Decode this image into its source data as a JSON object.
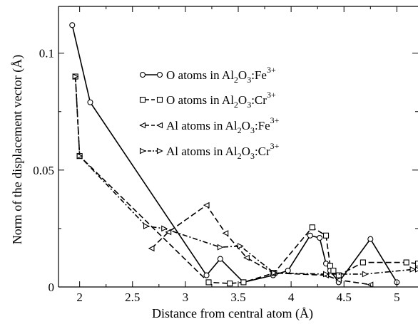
{
  "chart_data": {
    "type": "line",
    "xlabel": "Distance from central atom (Å)",
    "ylabel": "Norm of the displacement vector (Å)",
    "xlim": [
      1.8,
      5.2
    ],
    "ylim": [
      0,
      0.12
    ],
    "x_ticks": [
      2,
      2.5,
      3,
      3.5,
      4,
      4.5,
      5
    ],
    "x_tick_labels": [
      "2",
      "2.5",
      "3",
      "3.5",
      "4",
      "4.5",
      "5"
    ],
    "y_ticks": [
      0,
      0.05,
      0.1
    ],
    "y_tick_labels": [
      "0",
      "0.05",
      "0.1"
    ],
    "grid": false,
    "legend_position": "upper-center",
    "series": [
      {
        "name": "O atoms in Al2O3:Fe3+",
        "legend": {
          "base": "O atoms in Al",
          "sub1": "2",
          "mid": "O",
          "sub2": "3",
          "tail": ":Fe",
          "sup": "3+"
        },
        "marker": "circle",
        "dash": "solid",
        "color": "#000000",
        "x": [
          1.93,
          2.1,
          3.2,
          3.33,
          3.55,
          3.83,
          3.97,
          4.18,
          4.27,
          4.33,
          4.37,
          4.45,
          4.75,
          5.0
        ],
        "y": [
          0.112,
          0.079,
          0.005,
          0.012,
          0.002,
          0.005,
          0.007,
          0.022,
          0.021,
          0.01,
          0.007,
          0.002,
          0.0205,
          0.002
        ]
      },
      {
        "name": "O atoms in Al2O3:Cr3+",
        "legend": {
          "base": "O atoms in Al",
          "sub1": "2",
          "mid": "O",
          "sub2": "3",
          "tail": ":Cr",
          "sup": "3+"
        },
        "marker": "square",
        "dash": "dashed",
        "color": "#000000",
        "x": [
          1.96,
          2.0,
          3.22,
          3.42,
          3.55,
          3.84,
          4.2,
          4.33,
          4.37,
          4.4,
          4.45,
          4.68,
          5.09,
          5.2
        ],
        "y": [
          0.09,
          0.056,
          0.002,
          0.0015,
          0.002,
          0.006,
          0.0255,
          0.022,
          0.009,
          0.007,
          0.005,
          0.0105,
          0.0105,
          0.01
        ]
      },
      {
        "name": "Al atoms in Al2O3:Fe3+",
        "legend": {
          "base": "Al atoms in Al",
          "sub1": "2",
          "mid": "O",
          "sub2": "3",
          "tail": ":Fe",
          "sup": "3+"
        },
        "marker": "triangle-left",
        "dash": "dashed",
        "color": "#000000",
        "x": [
          2.68,
          2.84,
          3.2,
          3.38,
          3.58,
          3.83,
          4.33,
          4.45,
          4.75
        ],
        "y": [
          0.0165,
          0.0235,
          0.035,
          0.023,
          0.0125,
          0.006,
          0.005,
          0.003,
          0.001
        ]
      },
      {
        "name": "Al atoms in Al2O3:Cr3+",
        "legend": {
          "base": "Al atoms in Al",
          "sub1": "2",
          "mid": "O",
          "sub2": "3",
          "tail": ":Cr",
          "sup": "3+"
        },
        "marker": "triangle-right",
        "dash": "dashdot",
        "color": "#000000",
        "x": [
          1.96,
          2.0,
          2.63,
          2.8,
          3.33,
          3.52,
          3.84,
          4.33,
          4.7,
          5.15,
          5.2
        ],
        "y": [
          0.09,
          0.056,
          0.026,
          0.025,
          0.017,
          0.0175,
          0.006,
          0.0055,
          0.0055,
          0.0075,
          0.0075
        ]
      }
    ]
  }
}
